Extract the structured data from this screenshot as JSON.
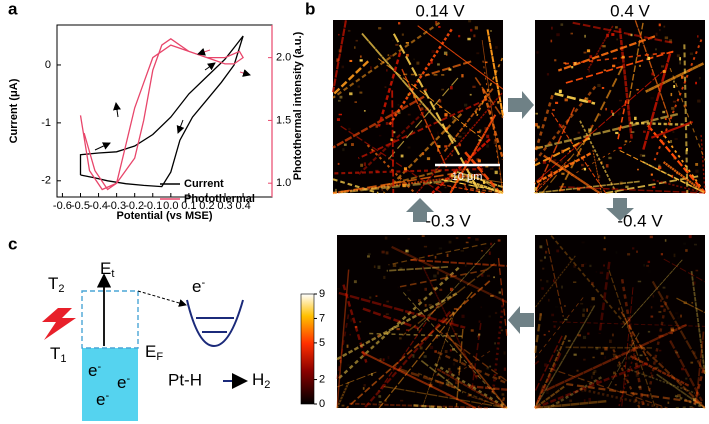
{
  "panel_labels": [
    "a",
    "b",
    "c"
  ],
  "chart_data": {
    "type": "line",
    "xlabel": "Potential (vs MSE)",
    "ylabel": "Current (μA)",
    "y2label": "Photothermal intensity (a.u.)",
    "xlim": [
      -0.63,
      0.56
    ],
    "xticks": [
      -0.6,
      -0.5,
      -0.4,
      -0.3,
      -0.2,
      -0.1,
      {
        "value": 0,
        "label": "0.0"
      },
      0.1,
      0.2,
      0.3,
      0.4
    ],
    "ylim": [
      -2.28,
      0.69
    ],
    "yticks": [
      -2,
      -1,
      0
    ],
    "y2lim": [
      0.89,
      2.26
    ],
    "y2ticks": [
      {
        "value": 1,
        "label": "1.0"
      },
      1.5,
      {
        "value": 2,
        "label": "2.0"
      }
    ],
    "legend": "lower right",
    "series": [
      {
        "name": "Current",
        "color": "#000000",
        "x": [
          -0.5,
          -0.42,
          -0.35,
          -0.25,
          -0.15,
          -0.05,
          0.0,
          0.05,
          0.12,
          0.2,
          0.28,
          0.35,
          0.4,
          0.35,
          0.3,
          0.2,
          0.1,
          0.0,
          -0.1,
          -0.2,
          -0.3,
          -0.4,
          -0.5,
          -0.5
        ],
        "values": [
          -1.9,
          -1.95,
          -2.0,
          -2.05,
          -2.08,
          -2.1,
          -1.85,
          -1.3,
          -0.9,
          -0.6,
          -0.3,
          0.0,
          0.5,
          0.3,
          0.1,
          -0.2,
          -0.5,
          -0.9,
          -1.2,
          -1.4,
          -1.5,
          -1.52,
          -1.55,
          -1.9
        ]
      },
      {
        "name": "Photothermal",
        "color": "#e8466b",
        "axis": "y2",
        "x": [
          -0.5,
          -0.45,
          -0.38,
          -0.3,
          -0.2,
          -0.15,
          -0.1,
          -0.05,
          0.0,
          0.1,
          0.2,
          0.3,
          0.38,
          0.4,
          0.35,
          0.3,
          0.2,
          0.1,
          0.0,
          -0.1,
          -0.15,
          -0.2,
          -0.25,
          -0.3,
          -0.35,
          -0.42,
          -0.48
        ],
        "values": [
          1.54,
          1.1,
          0.95,
          1.0,
          1.2,
          1.5,
          1.9,
          2.1,
          2.15,
          2.05,
          2.0,
          2.0,
          2.05,
          2.0,
          1.95,
          1.95,
          2.0,
          2.05,
          2.1,
          2.0,
          1.8,
          1.6,
          1.3,
          1.0,
          0.95,
          1.1,
          1.4
        ]
      }
    ]
  },
  "images": [
    {
      "label": "0.14 V"
    },
    {
      "label": "0.4 V"
    },
    {
      "label": "-0.4 V"
    },
    {
      "label": "-0.3 V"
    }
  ],
  "scale_bar": "10 μm",
  "colorbar": {
    "lim": [
      0,
      9
    ],
    "ticks": [
      0,
      2,
      5,
      7,
      9
    ]
  },
  "diagram": {
    "trap_level": {
      "main": "E",
      "sub": "t"
    },
    "state_upper": {
      "main": "T",
      "sub": "2"
    },
    "state_lower": {
      "main": "T",
      "sub": "1"
    },
    "fermi_level": {
      "main": "E",
      "sub": "F"
    },
    "transferred_electron": {
      "main": "e",
      "sup": "-"
    },
    "electrons": [
      {
        "main": "e",
        "sup": "-"
      },
      {
        "main": "e",
        "sup": "-"
      },
      {
        "main": "e",
        "sup": "-"
      }
    ],
    "reaction": {
      "reactant": "Pt-H",
      "product": {
        "main": "H",
        "sub": "2"
      }
    }
  }
}
